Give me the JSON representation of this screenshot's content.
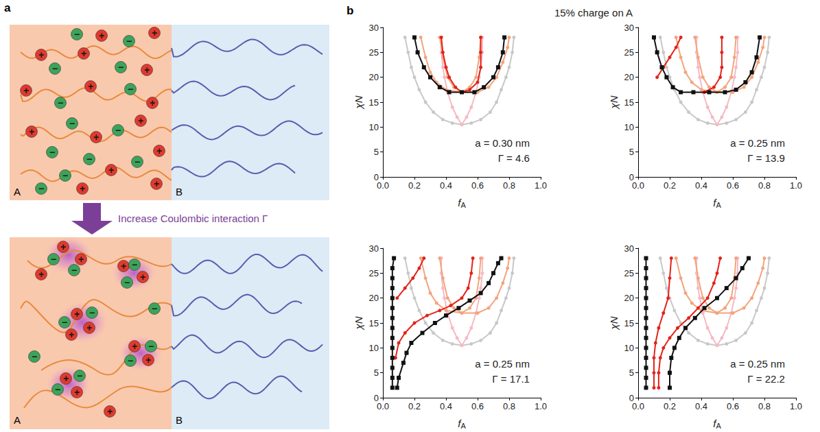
{
  "figure": {
    "panel_a": {
      "letter": "a",
      "arrow_label": "Increase Coulombic interaction Γ",
      "top": {
        "labels": [
          "A",
          "B"
        ]
      },
      "bottom": {
        "labels": [
          "A",
          "B"
        ]
      },
      "charges": {
        "positive": "+",
        "negative": "−"
      }
    },
    "panel_b": {
      "letter": "b",
      "title": "15% charge on A"
    }
  },
  "chart_data": [
    {
      "type": "line",
      "x_label": "fA",
      "y_label": "χN",
      "grid": false,
      "xlim": [
        0,
        1
      ],
      "xticks": [
        {
          "value": 0,
          "label": "0.0"
        },
        0.2,
        0.4,
        0.6,
        0.8,
        {
          "value": 1,
          "label": "1.0"
        }
      ],
      "ylim": [
        0,
        30
      ],
      "yticks": [
        0,
        5,
        10,
        15,
        20,
        25,
        30
      ],
      "annotations": [
        "a = 0.30 nm",
        "Γ = 4.6"
      ],
      "series": [
        {
          "color": "#c8c8c8",
          "marker": "circle",
          "x": [
            0.14,
            0.16,
            0.18,
            0.2,
            0.23,
            0.27,
            0.32,
            0.38,
            0.44,
            0.5,
            0.56,
            0.62,
            0.68,
            0.72,
            0.75,
            0.78,
            0.8,
            0.82,
            0.83
          ],
          "values": [
            28,
            25,
            22,
            20,
            17.5,
            15,
            13,
            11.5,
            10.8,
            10.5,
            10.8,
            11.5,
            13,
            15,
            17.5,
            20,
            22,
            25,
            28
          ]
        },
        {
          "color": "#f6b9c4",
          "marker": "circle",
          "x": [
            0.37,
            0.37,
            0.38,
            0.39,
            0.41,
            0.44,
            0.47,
            0.5,
            0.53,
            0.56,
            0.59,
            0.61,
            0.62,
            0.63,
            0.63
          ],
          "values": [
            28,
            25,
            22,
            20,
            17,
            14,
            12,
            10.5,
            12,
            14,
            17,
            20,
            22,
            25,
            28
          ]
        },
        {
          "color": "#f3a47c",
          "marker": "circle",
          "x": [
            0.24,
            0.27,
            0.3,
            0.34,
            0.4,
            0.5,
            0.6,
            0.67,
            0.72,
            0.76,
            0.79,
            0.8
          ],
          "values": [
            28,
            24,
            21,
            19,
            17.5,
            17,
            17,
            18,
            20,
            23,
            26,
            28
          ]
        },
        {
          "color": "#f3a47c",
          "marker": "circle",
          "x": [
            0.36,
            0.38,
            0.41,
            0.45,
            0.5,
            0.55,
            0.59,
            0.61,
            0.62
          ],
          "values": [
            28,
            24,
            20,
            18,
            17,
            18,
            20,
            24,
            28
          ]
        },
        {
          "color": "#e2231a",
          "marker": "circle",
          "x": [
            0.37,
            0.38,
            0.4,
            0.42,
            0.46,
            0.5,
            0.55,
            0.6,
            0.62,
            0.62,
            0.62
          ],
          "values": [
            28,
            25,
            22,
            20,
            18,
            17,
            17.5,
            19,
            22,
            25,
            28
          ]
        },
        {
          "color": "#111111",
          "marker": "square",
          "x": [
            0.2,
            0.22,
            0.26,
            0.3,
            0.36,
            0.42,
            0.5,
            0.58,
            0.64,
            0.7,
            0.73,
            0.76,
            0.77
          ],
          "values": [
            28,
            25,
            22,
            20,
            18,
            17,
            17,
            17,
            18,
            20,
            22,
            25,
            28
          ]
        }
      ]
    },
    {
      "type": "line",
      "x_label": "fA",
      "y_label": "χN",
      "grid": false,
      "xlim": [
        0,
        1
      ],
      "xticks": [
        {
          "value": 0,
          "label": "0.0"
        },
        0.2,
        0.4,
        0.6,
        0.8,
        {
          "value": 1,
          "label": "1.0"
        }
      ],
      "ylim": [
        0,
        30
      ],
      "yticks": [
        0,
        5,
        10,
        15,
        20,
        25,
        30
      ],
      "annotations": [
        "a = 0.25 nm",
        "Γ = 13.9"
      ],
      "series": [
        {
          "color": "#c8c8c8",
          "marker": "circle",
          "x": [
            0.14,
            0.16,
            0.18,
            0.2,
            0.23,
            0.27,
            0.32,
            0.38,
            0.44,
            0.5,
            0.56,
            0.62,
            0.68,
            0.72,
            0.75,
            0.78,
            0.8,
            0.82,
            0.83
          ],
          "values": [
            28,
            25,
            22,
            20,
            17.5,
            15,
            13,
            11.5,
            10.8,
            10.5,
            10.8,
            11.5,
            13,
            15,
            17.5,
            20,
            22,
            25,
            28
          ]
        },
        {
          "color": "#f6b9c4",
          "marker": "circle",
          "x": [
            0.37,
            0.37,
            0.38,
            0.39,
            0.41,
            0.44,
            0.47,
            0.5,
            0.53,
            0.56,
            0.59,
            0.61,
            0.62,
            0.63,
            0.63
          ],
          "values": [
            28,
            25,
            22,
            20,
            17,
            14,
            12,
            10.5,
            12,
            14,
            17,
            20,
            22,
            25,
            28
          ]
        },
        {
          "color": "#f3a47c",
          "marker": "circle",
          "x": [
            0.24,
            0.27,
            0.3,
            0.34,
            0.4,
            0.5,
            0.6,
            0.67,
            0.72,
            0.76,
            0.79,
            0.8
          ],
          "values": [
            28,
            24,
            21,
            19,
            17.5,
            17,
            17,
            18,
            20,
            23,
            26,
            28
          ]
        },
        {
          "color": "#f3a47c",
          "marker": "circle",
          "x": [
            0.36,
            0.38,
            0.41,
            0.45,
            0.5,
            0.55,
            0.59,
            0.61,
            0.62
          ],
          "values": [
            28,
            24,
            20,
            18,
            17,
            18,
            20,
            24,
            28
          ]
        },
        {
          "color": "#e2231a",
          "marker": "circle",
          "x": [
            0.12,
            0.16,
            0.2,
            0.24,
            0.27
          ],
          "values": [
            20,
            22,
            24,
            26,
            28
          ]
        },
        {
          "color": "#e2231a",
          "marker": "circle",
          "x": [
            0.42,
            0.48,
            0.52,
            0.53,
            0.53,
            0.53
          ],
          "values": [
            17,
            18,
            20,
            22,
            25,
            28
          ]
        },
        {
          "color": "#111111",
          "marker": "square",
          "x": [
            0.1,
            0.12,
            0.15,
            0.18,
            0.22,
            0.27,
            0.35,
            0.45,
            0.55,
            0.62,
            0.68,
            0.72,
            0.75,
            0.77
          ],
          "values": [
            28,
            25,
            22,
            20,
            18,
            17,
            17,
            17,
            17,
            17.5,
            19,
            21,
            24,
            28
          ]
        }
      ]
    },
    {
      "type": "line",
      "x_label": "fA",
      "y_label": "χN",
      "grid": false,
      "xlim": [
        0,
        1
      ],
      "xticks": [
        {
          "value": 0,
          "label": "0.0"
        },
        0.2,
        0.4,
        0.6,
        0.8,
        {
          "value": 1,
          "label": "1.0"
        }
      ],
      "ylim": [
        0,
        30
      ],
      "yticks": [
        0,
        5,
        10,
        15,
        20,
        25,
        30
      ],
      "annotations": [
        "a = 0.25 nm",
        "Γ = 17.1"
      ],
      "series": [
        {
          "color": "#c8c8c8",
          "marker": "circle",
          "x": [
            0.14,
            0.16,
            0.18,
            0.2,
            0.23,
            0.27,
            0.32,
            0.38,
            0.44,
            0.5,
            0.56,
            0.62,
            0.68,
            0.72,
            0.75,
            0.78,
            0.8,
            0.82,
            0.83
          ],
          "values": [
            28,
            25,
            22,
            20,
            17.5,
            15,
            13,
            11.5,
            10.8,
            10.5,
            10.8,
            11.5,
            13,
            15,
            17.5,
            20,
            22,
            25,
            28
          ]
        },
        {
          "color": "#f6b9c4",
          "marker": "circle",
          "x": [
            0.37,
            0.37,
            0.38,
            0.39,
            0.41,
            0.44,
            0.47,
            0.5,
            0.53,
            0.56,
            0.59,
            0.61,
            0.62,
            0.63,
            0.63
          ],
          "values": [
            28,
            25,
            22,
            20,
            17,
            14,
            12,
            10.5,
            12,
            14,
            17,
            20,
            22,
            25,
            28
          ]
        },
        {
          "color": "#f3a47c",
          "marker": "circle",
          "x": [
            0.24,
            0.27,
            0.3,
            0.34,
            0.4,
            0.5,
            0.6,
            0.67,
            0.72,
            0.76,
            0.79,
            0.8
          ],
          "values": [
            28,
            24,
            21,
            19,
            17.5,
            17,
            17,
            18,
            20,
            23,
            26,
            28
          ]
        },
        {
          "color": "#f3a47c",
          "marker": "circle",
          "x": [
            0.36,
            0.38,
            0.41,
            0.45,
            0.5,
            0.55,
            0.59,
            0.61,
            0.62
          ],
          "values": [
            28,
            24,
            20,
            18,
            17,
            18,
            20,
            24,
            28
          ]
        },
        {
          "color": "#e2231a",
          "marker": "circle",
          "x": [
            0.09,
            0.14,
            0.19,
            0.23,
            0.26
          ],
          "values": [
            20,
            22,
            24,
            26,
            28
          ]
        },
        {
          "color": "#e2231a",
          "marker": "circle",
          "x": [
            0.08,
            0.1,
            0.14,
            0.2,
            0.28,
            0.36,
            0.43,
            0.5,
            0.54,
            0.56,
            0.57
          ],
          "values": [
            8,
            11,
            13,
            15,
            16.5,
            17.5,
            18.5,
            20,
            22,
            25,
            28
          ]
        },
        {
          "color": "#111111",
          "marker": "square",
          "x": [
            0.06,
            0.06,
            0.06,
            0.06,
            0.06,
            0.06,
            0.06,
            0.06,
            0.06,
            0.06,
            0.06,
            0.06,
            0.06,
            0.07
          ],
          "values": [
            2,
            4,
            6,
            8,
            10,
            12,
            14,
            16,
            18,
            20,
            22,
            24,
            26,
            28
          ]
        },
        {
          "color": "#111111",
          "marker": "square",
          "x": [
            0.09,
            0.1,
            0.13,
            0.15,
            0.18,
            0.25,
            0.33,
            0.4,
            0.48,
            0.55,
            0.62,
            0.67,
            0.7,
            0.73,
            0.75
          ],
          "values": [
            2,
            4,
            7,
            9,
            11,
            13,
            15,
            16.5,
            18,
            19.5,
            21,
            23,
            25,
            27,
            28
          ]
        }
      ]
    },
    {
      "type": "line",
      "x_label": "fA",
      "y_label": "χN",
      "grid": false,
      "xlim": [
        0,
        1
      ],
      "xticks": [
        {
          "value": 0,
          "label": "0.0"
        },
        0.2,
        0.4,
        0.6,
        0.8,
        {
          "value": 1,
          "label": "1.0"
        }
      ],
      "ylim": [
        0,
        30
      ],
      "yticks": [
        0,
        5,
        10,
        15,
        20,
        25,
        30
      ],
      "annotations": [
        "a = 0.25 nm",
        "Γ = 22.2"
      ],
      "series": [
        {
          "color": "#c8c8c8",
          "marker": "circle",
          "x": [
            0.14,
            0.16,
            0.18,
            0.2,
            0.23,
            0.27,
            0.32,
            0.38,
            0.44,
            0.5,
            0.56,
            0.62,
            0.68,
            0.72,
            0.75,
            0.78,
            0.8,
            0.82,
            0.83
          ],
          "values": [
            28,
            25,
            22,
            20,
            17.5,
            15,
            13,
            11.5,
            10.8,
            10.5,
            10.8,
            11.5,
            13,
            15,
            17.5,
            20,
            22,
            25,
            28
          ]
        },
        {
          "color": "#f6b9c4",
          "marker": "circle",
          "x": [
            0.37,
            0.37,
            0.38,
            0.39,
            0.41,
            0.44,
            0.47,
            0.5,
            0.53,
            0.56,
            0.59,
            0.61,
            0.62,
            0.63,
            0.63
          ],
          "values": [
            28,
            25,
            22,
            20,
            17,
            14,
            12,
            10.5,
            12,
            14,
            17,
            20,
            22,
            25,
            28
          ]
        },
        {
          "color": "#f3a47c",
          "marker": "circle",
          "x": [
            0.24,
            0.27,
            0.3,
            0.34,
            0.4,
            0.5,
            0.6,
            0.67,
            0.72,
            0.76,
            0.79,
            0.8
          ],
          "values": [
            28,
            24,
            21,
            19,
            17.5,
            17,
            17,
            18,
            20,
            23,
            26,
            28
          ]
        },
        {
          "color": "#f3a47c",
          "marker": "circle",
          "x": [
            0.36,
            0.38,
            0.41,
            0.45,
            0.5,
            0.55,
            0.59,
            0.61,
            0.62
          ],
          "values": [
            28,
            24,
            20,
            18,
            17,
            18,
            20,
            24,
            28
          ]
        },
        {
          "color": "#e2231a",
          "marker": "circle",
          "x": [
            0.1,
            0.1,
            0.1,
            0.11,
            0.13,
            0.16,
            0.19,
            0.2,
            0.21
          ],
          "values": [
            2,
            5,
            8,
            11,
            14,
            17,
            20,
            24,
            28
          ]
        },
        {
          "color": "#e2231a",
          "marker": "circle",
          "x": [
            0.13,
            0.13,
            0.14,
            0.16,
            0.2,
            0.25,
            0.32,
            0.38,
            0.44,
            0.48,
            0.5,
            0.52
          ],
          "values": [
            2,
            5,
            8,
            10,
            12,
            14,
            16,
            18,
            20,
            23,
            25,
            28
          ]
        },
        {
          "color": "#111111",
          "marker": "square",
          "x": [
            0.05,
            0.05,
            0.05,
            0.05,
            0.05,
            0.05,
            0.05,
            0.05,
            0.05,
            0.05,
            0.05,
            0.05,
            0.05,
            0.05
          ],
          "values": [
            2,
            4,
            6,
            8,
            10,
            12,
            14,
            16,
            18,
            20,
            22,
            24,
            26,
            28
          ]
        },
        {
          "color": "#111111",
          "marker": "square",
          "x": [
            0.2,
            0.2,
            0.21,
            0.23,
            0.26,
            0.3,
            0.36,
            0.42,
            0.5,
            0.56,
            0.62,
            0.66,
            0.7
          ],
          "values": [
            2,
            5,
            8,
            10,
            12,
            14,
            16,
            18,
            20,
            22,
            24,
            26,
            28
          ]
        }
      ]
    }
  ]
}
